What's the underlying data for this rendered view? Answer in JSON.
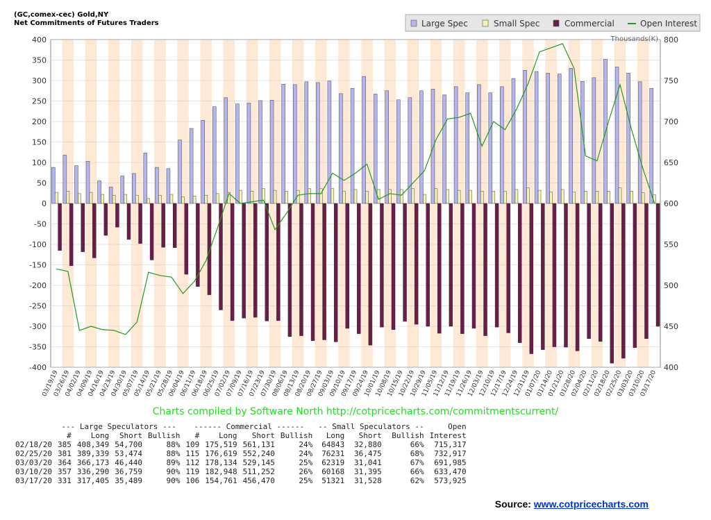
{
  "chart_data": {
    "type": "bar",
    "title": "(GC,comex-cec) Gold,NY",
    "subtitle": "Net Commitments of Futures Traders",
    "right_axis_label": "Thousands(K)",
    "ylim": [
      -400,
      400
    ],
    "y_ticks": [
      400,
      350,
      300,
      250,
      200,
      150,
      100,
      50,
      0,
      -50,
      -100,
      -150,
      -200,
      -250,
      -300,
      -350,
      -400
    ],
    "y2lim": [
      400,
      800
    ],
    "y2_ticks": [
      800,
      750,
      700,
      650,
      600,
      550,
      500,
      450,
      400
    ],
    "legend_position": "top-right",
    "categories": [
      "03/19/19",
      "03/26/19",
      "04/02/19",
      "04/09/19",
      "04/16/19",
      "04/23/19",
      "04/30/19",
      "05/07/19",
      "05/14/19",
      "05/21/19",
      "05/28/19",
      "06/04/19",
      "06/11/19",
      "06/18/19",
      "06/25/19",
      "07/02/19",
      "07/09/19",
      "07/16/19",
      "07/23/19",
      "07/30/19",
      "08/06/19",
      "08/13/19",
      "08/20/19",
      "08/27/19",
      "09/03/19",
      "09/10/19",
      "09/17/19",
      "09/24/19",
      "10/01/19",
      "10/08/19",
      "10/15/19",
      "10/22/19",
      "10/29/19",
      "11/05/19",
      "11/12/19",
      "11/19/19",
      "11/26/19",
      "12/03/19",
      "12/10/19",
      "12/17/19",
      "12/24/19",
      "12/31/19",
      "01/07/20",
      "01/14/20",
      "01/21/20",
      "01/28/20",
      "02/04/20",
      "02/11/20",
      "02/18/20",
      "02/25/20",
      "03/03/20",
      "03/10/20",
      "03/17/20"
    ],
    "series": [
      {
        "name": "Large Spec",
        "color": "#b4b4ee",
        "values": [
          88,
          118,
          92,
          103,
          55,
          40,
          67,
          73,
          123,
          88,
          85,
          155,
          183,
          203,
          236,
          258,
          243,
          245,
          251,
          252,
          291,
          290,
          297,
          295,
          299,
          268,
          281,
          310,
          267,
          275,
          253,
          258,
          275,
          279,
          265,
          285,
          270,
          290,
          270,
          285,
          305,
          325,
          322,
          318,
          316,
          330,
          298,
          307,
          352,
          333,
          318,
          297,
          281
        ]
      },
      {
        "name": "Small Spec",
        "color": "#f4f4b0",
        "values": [
          27,
          30,
          24,
          27,
          22,
          20,
          22,
          20,
          12,
          20,
          22,
          16,
          18,
          20,
          24,
          27,
          32,
          30,
          36,
          32,
          30,
          32,
          36,
          36,
          36,
          30,
          34,
          30,
          34,
          34,
          34,
          36,
          22,
          36,
          34,
          32,
          32,
          30,
          30,
          30,
          34,
          38,
          32,
          28,
          34,
          28,
          30,
          30,
          30,
          38,
          30,
          26,
          21
        ]
      },
      {
        "name": "Commercial",
        "color": "#6b1d4a",
        "values": [
          -115,
          -152,
          -118,
          -133,
          -78,
          -58,
          -88,
          -98,
          -138,
          -107,
          -108,
          -173,
          -203,
          -223,
          -260,
          -286,
          -280,
          -278,
          -287,
          -286,
          -325,
          -323,
          -335,
          -333,
          -338,
          -305,
          -318,
          -346,
          -302,
          -308,
          -288,
          -295,
          -300,
          -317,
          -300,
          -318,
          -305,
          -323,
          -302,
          -316,
          -340,
          -367,
          -357,
          -350,
          -351,
          -360,
          -330,
          -337,
          -390,
          -378,
          -352,
          -330,
          -300
        ]
      },
      {
        "name": "Open Interest",
        "color": "#229922",
        "axis": "right",
        "values": [
          520,
          517,
          445,
          450,
          446,
          445,
          440,
          455,
          516,
          512,
          510,
          490,
          505,
          530,
          570,
          612,
          600,
          602,
          604,
          568,
          588,
          610,
          612,
          612,
          637,
          628,
          637,
          648,
          605,
          612,
          610,
          625,
          640,
          678,
          703,
          705,
          710,
          670,
          700,
          690,
          715,
          746,
          785,
          790,
          795,
          765,
          658,
          652,
          700,
          745,
          690,
          642,
          600
        ]
      }
    ]
  },
  "credit": "Charts compiled by Software North  http://cotpricecharts.com/commitmentscurrent/",
  "table": {
    "groups": {
      "large": "--- Large Speculators ---",
      "commercial": "------ Commercial ------",
      "small": "-- Small Speculators --",
      "oi_top": "Open"
    },
    "headers": [
      "",
      "#",
      "Long",
      "Short",
      "Bullish",
      "#",
      "Long",
      "Short",
      "Bullish",
      "Long",
      "Short",
      "Bullish",
      "Interest"
    ],
    "rows": [
      [
        "02/18/20",
        "385",
        "408,349",
        "54,700",
        "88%",
        "109",
        "175,519",
        "561,131",
        "24%",
        "64843",
        "32,880",
        "66%",
        "715,317"
      ],
      [
        "02/25/20",
        "381",
        "389,339",
        "53,474",
        "88%",
        "115",
        "176,619",
        "552,240",
        "24%",
        "76231",
        "36,475",
        "68%",
        "732,917"
      ],
      [
        "03/03/20",
        "364",
        "366,173",
        "46,440",
        "89%",
        "112",
        "178,134",
        "529,145",
        "25%",
        "62319",
        "31,041",
        "67%",
        "691,985"
      ],
      [
        "03/10/20",
        "357",
        "336,290",
        "36,759",
        "90%",
        "119",
        "182,948",
        "511,252",
        "26%",
        "60168",
        "31,395",
        "66%",
        "633,470"
      ],
      [
        "03/17/20",
        "331",
        "317,405",
        "35,489",
        "90%",
        "106",
        "154,761",
        "456,470",
        "25%",
        "51321",
        "31,528",
        "62%",
        "573,925"
      ]
    ]
  },
  "source": {
    "label": "Source:",
    "link": "www.cotpricecharts.com"
  }
}
